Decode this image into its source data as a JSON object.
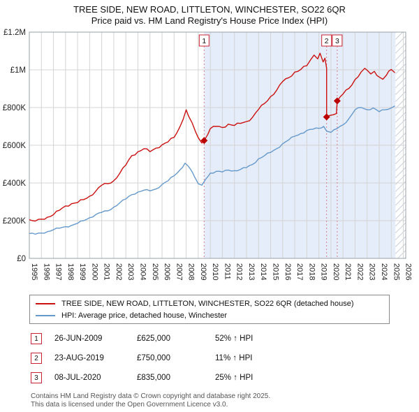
{
  "title": "TREE SIDE, NEW ROAD, LITTLETON, WINCHESTER, SO22 6QR",
  "subtitle": "Price paid vs. HM Land Registry's House Price Index (HPI)",
  "chart_data": {
    "type": "line",
    "title": "TREE SIDE, NEW ROAD, LITTLETON, WINCHESTER, SO22 6QR",
    "subtitle": "Price paid vs. HM Land Registry's House Price Index (HPI)",
    "values_unit": "GBP thousands",
    "grid": true,
    "xlim": [
      1995,
      2026.2
    ],
    "ylim": [
      0,
      1200
    ],
    "x_ticks": [
      "1995",
      "1996",
      "1997",
      "1998",
      "1999",
      "2000",
      "2001",
      "2002",
      "2003",
      "2004",
      "2005",
      "2006",
      "2007",
      "2008",
      "2009",
      "2010",
      "2011",
      "2012",
      "2013",
      "2014",
      "2015",
      "2016",
      "2017",
      "2018",
      "2019",
      "2020",
      "2021",
      "2022",
      "2023",
      "2024",
      "2025",
      "2026"
    ],
    "y_ticks": [
      {
        "value": 0,
        "label": "£0"
      },
      {
        "value": 200,
        "label": "£200K"
      },
      {
        "value": 400,
        "label": "£400K"
      },
      {
        "value": 600,
        "label": "£600K"
      },
      {
        "value": 800,
        "label": "£800K"
      },
      {
        "value": 1000,
        "label": "£1M"
      },
      {
        "value": 1200,
        "label": "£1.2M"
      }
    ],
    "shaded_region": {
      "from": 2009.49,
      "to": 2025.35,
      "color": "#e4edf9"
    },
    "hatch_region": {
      "from": 2025.35,
      "to": 2026.2
    },
    "series": [
      {
        "name": "HPI: Average price, detached house, Winchester",
        "color": "#6699cc",
        "points": [
          [
            1995,
            132
          ],
          [
            1995.5,
            128
          ],
          [
            1996,
            134
          ],
          [
            1996.5,
            142
          ],
          [
            1997,
            152
          ],
          [
            1997.5,
            160
          ],
          [
            1998,
            168
          ],
          [
            1998.5,
            175
          ],
          [
            1999,
            186
          ],
          [
            1999.5,
            200
          ],
          [
            2000,
            216
          ],
          [
            2000.5,
            232
          ],
          [
            2001,
            244
          ],
          [
            2001.5,
            252
          ],
          [
            2002,
            272
          ],
          [
            2002.5,
            295
          ],
          [
            2003,
            315
          ],
          [
            2003.5,
            338
          ],
          [
            2004,
            352
          ],
          [
            2004.5,
            362
          ],
          [
            2005,
            358
          ],
          [
            2005.5,
            368
          ],
          [
            2006,
            392
          ],
          [
            2006.5,
            412
          ],
          [
            2007,
            438
          ],
          [
            2007.5,
            470
          ],
          [
            2007.9,
            505
          ],
          [
            2008.3,
            478
          ],
          [
            2008.7,
            432
          ],
          [
            2009,
            396
          ],
          [
            2009.3,
            388
          ],
          [
            2009.6,
            418
          ],
          [
            2010,
            452
          ],
          [
            2010.5,
            462
          ],
          [
            2011,
            458
          ],
          [
            2011.5,
            468
          ],
          [
            2012,
            465
          ],
          [
            2012.5,
            472
          ],
          [
            2013,
            482
          ],
          [
            2013.5,
            498
          ],
          [
            2014,
            528
          ],
          [
            2014.5,
            545
          ],
          [
            2015,
            562
          ],
          [
            2015.5,
            582
          ],
          [
            2016,
            608
          ],
          [
            2016.5,
            628
          ],
          [
            2017,
            648
          ],
          [
            2017.5,
            662
          ],
          [
            2018,
            678
          ],
          [
            2018.5,
            685
          ],
          [
            2019,
            690
          ],
          [
            2019.4,
            700
          ],
          [
            2019.64,
            675
          ],
          [
            2020,
            668
          ],
          [
            2020.5,
            688
          ],
          [
            2021,
            708
          ],
          [
            2021.5,
            742
          ],
          [
            2022,
            788
          ],
          [
            2022.5,
            800
          ],
          [
            2023,
            788
          ],
          [
            2023.5,
            798
          ],
          [
            2024,
            778
          ],
          [
            2024.5,
            788
          ],
          [
            2025,
            798
          ],
          [
            2025.3,
            808
          ]
        ]
      },
      {
        "name": "TREE SIDE, NEW ROAD, LITTLETON, WINCHESTER, SO22 6QR (detached house)",
        "color": "#cc1111",
        "points": [
          [
            1995,
            205
          ],
          [
            1995.25,
            200
          ],
          [
            1995.5,
            198
          ],
          [
            1996,
            208
          ],
          [
            1996.5,
            218
          ],
          [
            1997,
            232
          ],
          [
            1997.5,
            255
          ],
          [
            1998,
            278
          ],
          [
            1998.5,
            290
          ],
          [
            1999,
            296
          ],
          [
            1999.5,
            312
          ],
          [
            2000,
            330
          ],
          [
            2000.5,
            356
          ],
          [
            2001,
            388
          ],
          [
            2001.5,
            396
          ],
          [
            2002,
            412
          ],
          [
            2002.5,
            452
          ],
          [
            2003,
            495
          ],
          [
            2003.5,
            545
          ],
          [
            2004,
            565
          ],
          [
            2004.5,
            582
          ],
          [
            2005,
            566
          ],
          [
            2005.5,
            585
          ],
          [
            2006,
            602
          ],
          [
            2006.5,
            618
          ],
          [
            2007,
            642
          ],
          [
            2007.5,
            700
          ],
          [
            2008,
            788
          ],
          [
            2008.2,
            755
          ],
          [
            2008.5,
            718
          ],
          [
            2008.8,
            668
          ],
          [
            2009,
            640
          ],
          [
            2009.3,
            612
          ],
          [
            2009.49,
            625
          ],
          [
            2009.8,
            658
          ],
          [
            2010,
            688
          ],
          [
            2010.5,
            700
          ],
          [
            2011,
            694
          ],
          [
            2011.5,
            712
          ],
          [
            2012,
            705
          ],
          [
            2012.5,
            716
          ],
          [
            2013,
            726
          ],
          [
            2013.5,
            748
          ],
          [
            2014,
            790
          ],
          [
            2014.5,
            822
          ],
          [
            2015,
            858
          ],
          [
            2015.5,
            892
          ],
          [
            2016,
            938
          ],
          [
            2016.5,
            958
          ],
          [
            2017,
            988
          ],
          [
            2017.5,
            1002
          ],
          [
            2018,
            1022
          ],
          [
            2018.3,
            1052
          ],
          [
            2018.6,
            1078
          ],
          [
            2018.9,
            1058
          ],
          [
            2019.1,
            1088
          ],
          [
            2019.35,
            1042
          ],
          [
            2019.5,
            1062
          ],
          [
            2019.64,
            1008
          ],
          [
            2019.64,
            750
          ],
          [
            2019.9,
            758
          ],
          [
            2020.2,
            762
          ],
          [
            2020.45,
            768
          ],
          [
            2020.52,
            835
          ],
          [
            2021,
            872
          ],
          [
            2021.5,
            902
          ],
          [
            2022,
            948
          ],
          [
            2022.5,
            988
          ],
          [
            2022.8,
            1008
          ],
          [
            2023,
            998
          ],
          [
            2023.3,
            978
          ],
          [
            2023.6,
            992
          ],
          [
            2024,
            962
          ],
          [
            2024.3,
            950
          ],
          [
            2024.6,
            972
          ],
          [
            2025,
            1002
          ],
          [
            2025.3,
            985
          ]
        ]
      }
    ],
    "sales": [
      {
        "n": "1",
        "x": 2009.49,
        "value": 625,
        "date": "26-JUN-2009",
        "price": "£625,000",
        "hpi": "52% ↑ HPI"
      },
      {
        "n": "2",
        "x": 2019.64,
        "value": 750,
        "date": "23-AUG-2019",
        "price": "£750,000",
        "hpi": "11% ↑ HPI"
      },
      {
        "n": "3",
        "x": 2020.52,
        "value": 835,
        "date": "08-JUL-2020",
        "price": "£835,000",
        "hpi": "25% ↑ HPI"
      }
    ]
  },
  "legend": [
    {
      "label": "TREE SIDE, NEW ROAD, LITTLETON, WINCHESTER, SO22 6QR (detached house)",
      "color": "#cc1111"
    },
    {
      "label": "HPI: Average price, detached house, Winchester",
      "color": "#6699cc"
    }
  ],
  "sales_table": {
    "rows": [
      {
        "n": "1",
        "date": "26-JUN-2009",
        "price": "£625,000",
        "hpi": "52% ↑ HPI"
      },
      {
        "n": "2",
        "date": "23-AUG-2019",
        "price": "£750,000",
        "hpi": "11% ↑ HPI"
      },
      {
        "n": "3",
        "date": "08-JUL-2020",
        "price": "£835,000",
        "hpi": "25% ↑ HPI"
      }
    ]
  },
  "footer": {
    "line1": "Contains HM Land Registry data © Crown copyright and database right 2025.",
    "line2": "This data is licensed under the Open Government Licence v3.0."
  }
}
